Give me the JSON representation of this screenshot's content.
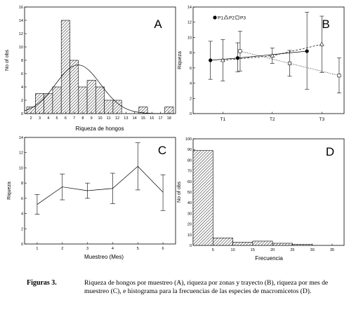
{
  "chart_data": [
    {
      "id": "A",
      "type": "bar",
      "panel_label": "A",
      "xlabel": "Riqueza de hongos",
      "ylabel": "No of obs",
      "x_ticks": [
        "2",
        "3",
        "4",
        "5",
        "6",
        "7",
        "8",
        "9",
        "10",
        "11",
        "12",
        "13",
        "14",
        "15",
        "16",
        "17",
        "18"
      ],
      "values": [
        1,
        3,
        3,
        4,
        14,
        8,
        4,
        5,
        4,
        2,
        2,
        0,
        0,
        1,
        0,
        0,
        1
      ],
      "ylim": [
        0,
        16
      ],
      "y_ticks": [
        0,
        2,
        4,
        6,
        8,
        10,
        12,
        14,
        16
      ],
      "curve": "normal",
      "curve_mean": 7.45,
      "curve_sd": 2.6,
      "curve_peak": 7.3
    },
    {
      "id": "B",
      "type": "line",
      "panel_label": "B",
      "ylabel": "Riqueza",
      "categories": [
        "T1",
        "T2",
        "T3"
      ],
      "ylim": [
        0,
        14
      ],
      "y_ticks": [
        0,
        2,
        4,
        6,
        8,
        10,
        12,
        14
      ],
      "legend": "top-left",
      "series": [
        {
          "name": "P1",
          "marker": "filled-circle",
          "line": "solid",
          "x": [
            0.75,
            1.3,
            2.7
          ],
          "y": [
            7.0,
            7.3,
            8.2
          ],
          "err": [
            [
              4.5,
              9.5
            ],
            [
              5.5,
              9.3
            ],
            [
              3.2,
              13.3
            ]
          ]
        },
        {
          "name": "P2",
          "marker": "open-triangle",
          "line": "dashed",
          "x": [
            1.0,
            2.0,
            3.0
          ],
          "y": [
            7.0,
            7.6,
            9.1
          ],
          "err": [
            [
              4.3,
              9.7
            ],
            [
              6.6,
              8.6
            ],
            [
              5.4,
              12.8
            ]
          ]
        },
        {
          "name": "P3",
          "marker": "open-square",
          "line": "dotted",
          "x": [
            1.35,
            2.35,
            3.35
          ],
          "y": [
            8.2,
            6.6,
            5.0
          ],
          "err": [
            [
              5.6,
              10.8
            ],
            [
              4.9,
              8.3
            ],
            [
              2.7,
              7.3
            ]
          ]
        }
      ]
    },
    {
      "id": "C",
      "type": "line",
      "panel_label": "C",
      "xlabel": "Muestreo (Mes)",
      "ylabel": "Riqueza",
      "x": [
        1,
        2,
        3,
        4,
        5,
        6
      ],
      "y": [
        5.2,
        7.5,
        7.0,
        7.3,
        10.2,
        6.8
      ],
      "err": [
        [
          3.9,
          6.5
        ],
        [
          5.8,
          9.2
        ],
        [
          6.0,
          8.0
        ],
        [
          5.3,
          9.3
        ],
        [
          7.1,
          13.3
        ],
        [
          4.4,
          9.1
        ]
      ],
      "xlim": [
        0.5,
        6.5
      ],
      "ylim": [
        0,
        14
      ],
      "y_ticks": [
        0,
        2,
        4,
        6,
        8,
        10,
        12,
        14
      ],
      "x_ticks": [
        1,
        2,
        3,
        4,
        5,
        6
      ]
    },
    {
      "id": "D",
      "type": "bar",
      "panel_label": "D",
      "xlabel": "Frecuencia",
      "ylabel": "No of obs",
      "bins": [
        [
          0,
          5
        ],
        [
          5,
          10
        ],
        [
          10,
          15
        ],
        [
          15,
          20
        ],
        [
          20,
          25
        ],
        [
          25,
          30
        ]
      ],
      "values": [
        89,
        7,
        3,
        4,
        2,
        1
      ],
      "xlim": [
        0,
        38
      ],
      "x_ticks": [
        5,
        10,
        15,
        20,
        25,
        30,
        35
      ],
      "ylim": [
        0,
        100
      ],
      "y_ticks": [
        0,
        10,
        20,
        30,
        40,
        50,
        60,
        70,
        80,
        90,
        100
      ]
    }
  ],
  "caption": {
    "label": "Figuras 3.",
    "text": "Riqueza de hongos por muestreo (A), riqueza por zonas y trayecto (B), riqueza por mes de muestreo (C), e histograma para la frecuencias de las especies de macromicetos (D)."
  }
}
